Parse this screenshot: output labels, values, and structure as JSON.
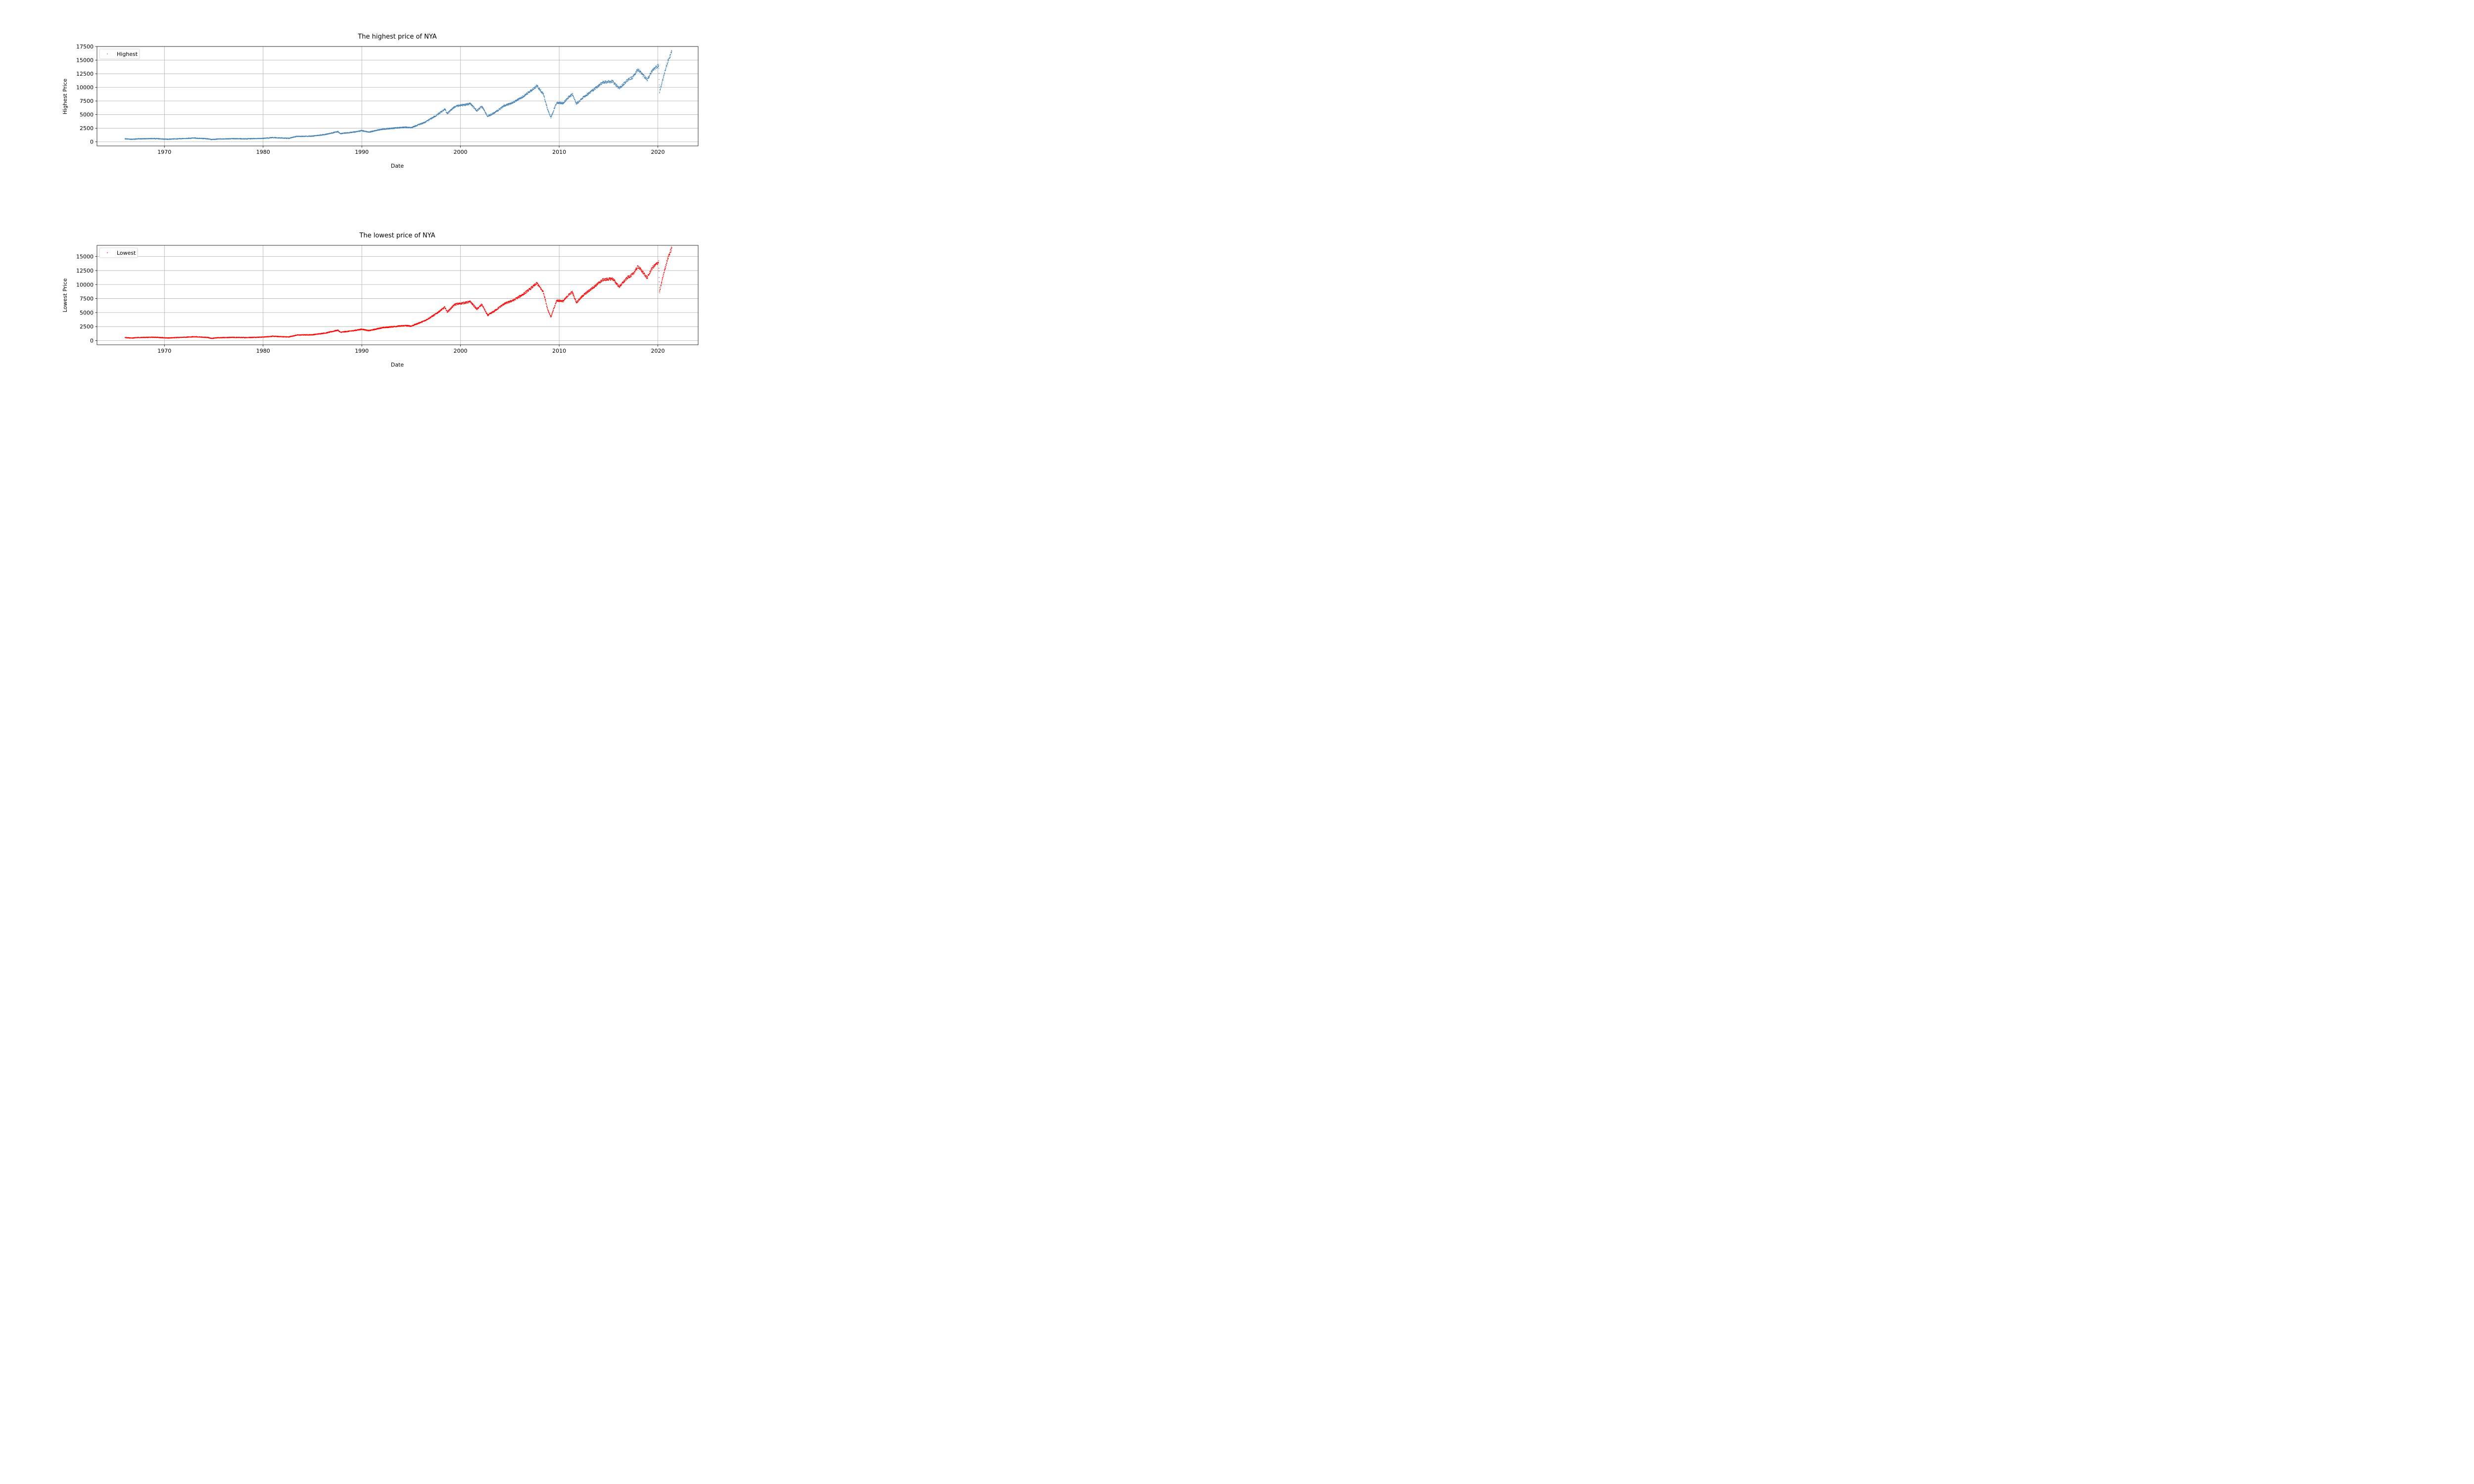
{
  "colors": {
    "highest_series": "#4682b4",
    "lowest_series": "#ff0000",
    "grid": "#b0b0b0",
    "axes": "#000000",
    "background": "#ffffff"
  },
  "chart_data": [
    {
      "type": "scatter",
      "title": "The highest price of NYA",
      "xlabel": "Date",
      "ylabel": "Highest Price",
      "xlim": [
        "1963-03-01",
        "2024-02-01"
      ],
      "ylim": [
        -750,
        17500
      ],
      "xticks": [
        "1970",
        "1980",
        "1990",
        "2000",
        "2010",
        "2020"
      ],
      "yticks": [
        "0",
        "2500",
        "5000",
        "7500",
        "10000",
        "12500",
        "15000",
        "17500"
      ],
      "grid": true,
      "legend_position": "upper-left",
      "series": [
        {
          "name": "Highest",
          "color": "#4682b4",
          "x": [
            "1966-01",
            "1966-10",
            "1967-06",
            "1968-12",
            "1970-05",
            "1970-12",
            "1972-06",
            "1973-01",
            "1974-06",
            "1974-10",
            "1975-06",
            "1977-01",
            "1978-03",
            "1980-01",
            "1981-01",
            "1982-08",
            "1983-06",
            "1985-01",
            "1986-06",
            "1987-08",
            "1987-11",
            "1989-01",
            "1990-01",
            "1990-10",
            "1992-01",
            "1993-06",
            "1994-06",
            "1995-01",
            "1996-06",
            "1997-06",
            "1998-06",
            "1998-09",
            "1999-06",
            "2000-06",
            "2001-01",
            "2001-09",
            "2002-03",
            "2002-10",
            "2003-06",
            "2004-06",
            "2005-06",
            "2006-06",
            "2007-01",
            "2007-10",
            "2008-06",
            "2008-11",
            "2009-03",
            "2009-10",
            "2010-06",
            "2011-01",
            "2011-05",
            "2011-10",
            "2012-06",
            "2013-06",
            "2014-06",
            "2015-06",
            "2016-02",
            "2016-12",
            "2017-06",
            "2018-01",
            "2018-12",
            "2019-06",
            "2020-02",
            "2020-03",
            "2020-08",
            "2021-01",
            "2021-06"
          ],
          "y": [
            550,
            470,
            560,
            610,
            480,
            530,
            640,
            700,
            560,
            420,
            520,
            580,
            550,
            640,
            780,
            650,
            1000,
            1050,
            1400,
            1880,
            1520,
            1750,
            2050,
            1800,
            2300,
            2550,
            2700,
            2600,
            3600,
            4700,
            6000,
            5200,
            6500,
            6800,
            7000,
            5700,
            6500,
            4700,
            5300,
            6600,
            7300,
            8400,
            9200,
            10300,
            8700,
            5900,
            4500,
            7200,
            7100,
            8300,
            8700,
            7000,
            8100,
            9500,
            10900,
            11100,
            9800,
            11300,
            11800,
            13300,
            11400,
            13000,
            14100,
            9000,
            12000,
            14700,
            16600
          ]
        }
      ]
    },
    {
      "type": "scatter",
      "title": "The lowest price of NYA",
      "xlabel": "Date",
      "ylabel": "Lowest Price",
      "xlim": [
        "1963-03-01",
        "2024-02-01"
      ],
      "ylim": [
        -750,
        17000
      ],
      "xticks": [
        "1970",
        "1980",
        "1990",
        "2000",
        "2010",
        "2020"
      ],
      "yticks": [
        "0",
        "2500",
        "5000",
        "7500",
        "10000",
        "12500",
        "15000"
      ],
      "grid": true,
      "legend_position": "upper-left",
      "series": [
        {
          "name": "Lowest",
          "color": "#ff0000",
          "x": [
            "1966-01",
            "1966-10",
            "1967-06",
            "1968-12",
            "1970-05",
            "1970-12",
            "1972-06",
            "1973-01",
            "1974-06",
            "1974-10",
            "1975-06",
            "1977-01",
            "1978-03",
            "1980-01",
            "1981-01",
            "1982-08",
            "1983-06",
            "1985-01",
            "1986-06",
            "1987-08",
            "1987-11",
            "1989-01",
            "1990-01",
            "1990-10",
            "1992-01",
            "1993-06",
            "1994-06",
            "1995-01",
            "1996-06",
            "1997-06",
            "1998-06",
            "1998-09",
            "1999-06",
            "2000-06",
            "2001-01",
            "2001-09",
            "2002-03",
            "2002-10",
            "2003-06",
            "2004-06",
            "2005-06",
            "2006-06",
            "2007-01",
            "2007-10",
            "2008-06",
            "2008-11",
            "2009-03",
            "2009-10",
            "2010-06",
            "2011-01",
            "2011-05",
            "2011-10",
            "2012-06",
            "2013-06",
            "2014-06",
            "2015-06",
            "2016-02",
            "2016-12",
            "2017-06",
            "2018-01",
            "2018-12",
            "2019-06",
            "2020-02",
            "2020-03",
            "2020-08",
            "2021-01",
            "2021-06"
          ],
          "y": [
            540,
            460,
            550,
            600,
            470,
            520,
            630,
            690,
            550,
            400,
            510,
            570,
            540,
            630,
            770,
            640,
            990,
            1040,
            1380,
            1860,
            1480,
            1730,
            2030,
            1770,
            2280,
            2530,
            2680,
            2580,
            3570,
            4650,
            5950,
            5100,
            6450,
            6750,
            6950,
            5600,
            6450,
            4500,
            5250,
            6550,
            7250,
            8350,
            9150,
            10250,
            8600,
            5600,
            4200,
            7150,
            7050,
            8250,
            8650,
            6800,
            8050,
            9450,
            10850,
            11050,
            9600,
            11250,
            11750,
            13250,
            11200,
            12950,
            14050,
            8600,
            11950,
            14650,
            16550
          ]
        }
      ]
    }
  ]
}
